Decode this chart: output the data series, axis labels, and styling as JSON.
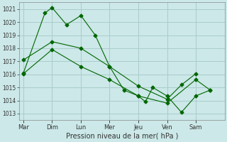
{
  "xlabel": "Pression niveau de la mer( hPa )",
  "background_color": "#cce8e8",
  "grid_color": "#aacccc",
  "line_color": "#006600",
  "ylim": [
    1012.5,
    1021.5
  ],
  "yticks": [
    1013,
    1014,
    1015,
    1016,
    1017,
    1018,
    1019,
    1020,
    1021
  ],
  "x_labels": [
    "Mar",
    "Dim",
    "Lun",
    "Mer",
    "Jeu",
    "Ven",
    "Sam"
  ],
  "x_tick_positions": [
    0,
    1,
    2,
    3,
    4,
    5,
    6
  ],
  "xlim": [
    -0.15,
    7.0
  ],
  "series1_x": [
    0,
    0.75,
    1.0,
    1.5,
    2.0,
    2.5,
    3.0,
    3.5,
    4.0,
    4.25,
    4.5,
    5.0,
    5.5,
    6.0,
    6.5
  ],
  "series1_y": [
    1016.1,
    1020.7,
    1021.1,
    1019.8,
    1020.5,
    1019.0,
    1016.6,
    1014.8,
    1014.35,
    1013.9,
    1015.0,
    1014.35,
    1013.1,
    1014.35,
    1014.8
  ],
  "series2_x": [
    0,
    1.0,
    2.0,
    3.0,
    4.0,
    5.0,
    5.5,
    6.0
  ],
  "series2_y": [
    1017.1,
    1018.5,
    1018.0,
    1016.6,
    1015.1,
    1014.1,
    1015.2,
    1016.05
  ],
  "series3_x": [
    0,
    1.0,
    2.0,
    3.0,
    4.0,
    5.0,
    6.0,
    6.5
  ],
  "series3_y": [
    1016.05,
    1017.9,
    1016.6,
    1015.6,
    1014.35,
    1013.8,
    1015.6,
    1014.8
  ]
}
